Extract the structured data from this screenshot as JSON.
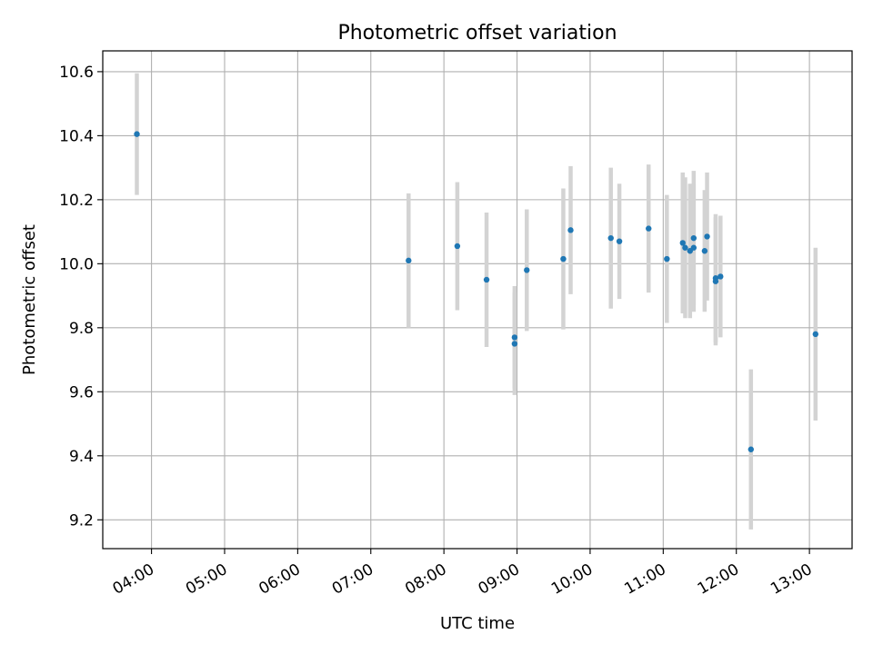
{
  "chart_data": {
    "type": "scatter",
    "title": "Photometric offset variation",
    "xlabel": "UTC time",
    "ylabel": "Photometric offset",
    "x_tick_labels": [
      "04:00",
      "05:00",
      "06:00",
      "07:00",
      "08:00",
      "09:00",
      "10:00",
      "11:00",
      "12:00",
      "13:00"
    ],
    "x_tick_hours": [
      4,
      5,
      6,
      7,
      8,
      9,
      10,
      11,
      12,
      13
    ],
    "y_tick_labels": [
      "9.2",
      "9.4",
      "9.6",
      "9.8",
      "10.0",
      "10.2",
      "10.4",
      "10.6"
    ],
    "y_tick_values": [
      9.2,
      9.4,
      9.6,
      9.8,
      10.0,
      10.2,
      10.4,
      10.6
    ],
    "xlim": [
      "03:20",
      "13:35"
    ],
    "ylim": [
      9.11,
      10.665
    ],
    "grid": true,
    "errorbar_color": "#d3d3d3",
    "marker_color": "#1f77b4",
    "series": [
      {
        "points": [
          {
            "x": "03:48",
            "y": 10.405,
            "err": 0.19
          },
          {
            "x": "07:31",
            "y": 10.01,
            "err": 0.21
          },
          {
            "x": "08:11",
            "y": 10.055,
            "err": 0.2
          },
          {
            "x": "08:35",
            "y": 9.95,
            "err": 0.21
          },
          {
            "x": "08:58",
            "y": 9.77,
            "err": 0.16
          },
          {
            "x": "08:58",
            "y": 9.75,
            "err": 0.16
          },
          {
            "x": "09:08",
            "y": 9.98,
            "err": 0.19
          },
          {
            "x": "09:38",
            "y": 10.015,
            "err": 0.22
          },
          {
            "x": "09:44",
            "y": 10.105,
            "err": 0.2
          },
          {
            "x": "10:17",
            "y": 10.08,
            "err": 0.22
          },
          {
            "x": "10:24",
            "y": 10.07,
            "err": 0.18
          },
          {
            "x": "10:48",
            "y": 10.11,
            "err": 0.2
          },
          {
            "x": "11:03",
            "y": 10.015,
            "err": 0.2
          },
          {
            "x": "11:16",
            "y": 10.065,
            "err": 0.22
          },
          {
            "x": "11:18",
            "y": 10.05,
            "err": 0.22
          },
          {
            "x": "11:22",
            "y": 10.04,
            "err": 0.21
          },
          {
            "x": "11:25",
            "y": 10.08,
            "err": 0.21
          },
          {
            "x": "11:25",
            "y": 10.05,
            "err": 0.2
          },
          {
            "x": "11:34",
            "y": 10.04,
            "err": 0.19
          },
          {
            "x": "11:36",
            "y": 10.085,
            "err": 0.2
          },
          {
            "x": "11:43",
            "y": 9.955,
            "err": 0.2
          },
          {
            "x": "11:43",
            "y": 9.945,
            "err": 0.2
          },
          {
            "x": "11:47",
            "y": 9.96,
            "err": 0.19
          },
          {
            "x": "12:12",
            "y": 9.42,
            "err": 0.25
          },
          {
            "x": "13:05",
            "y": 9.78,
            "err": 0.27
          }
        ]
      }
    ]
  }
}
